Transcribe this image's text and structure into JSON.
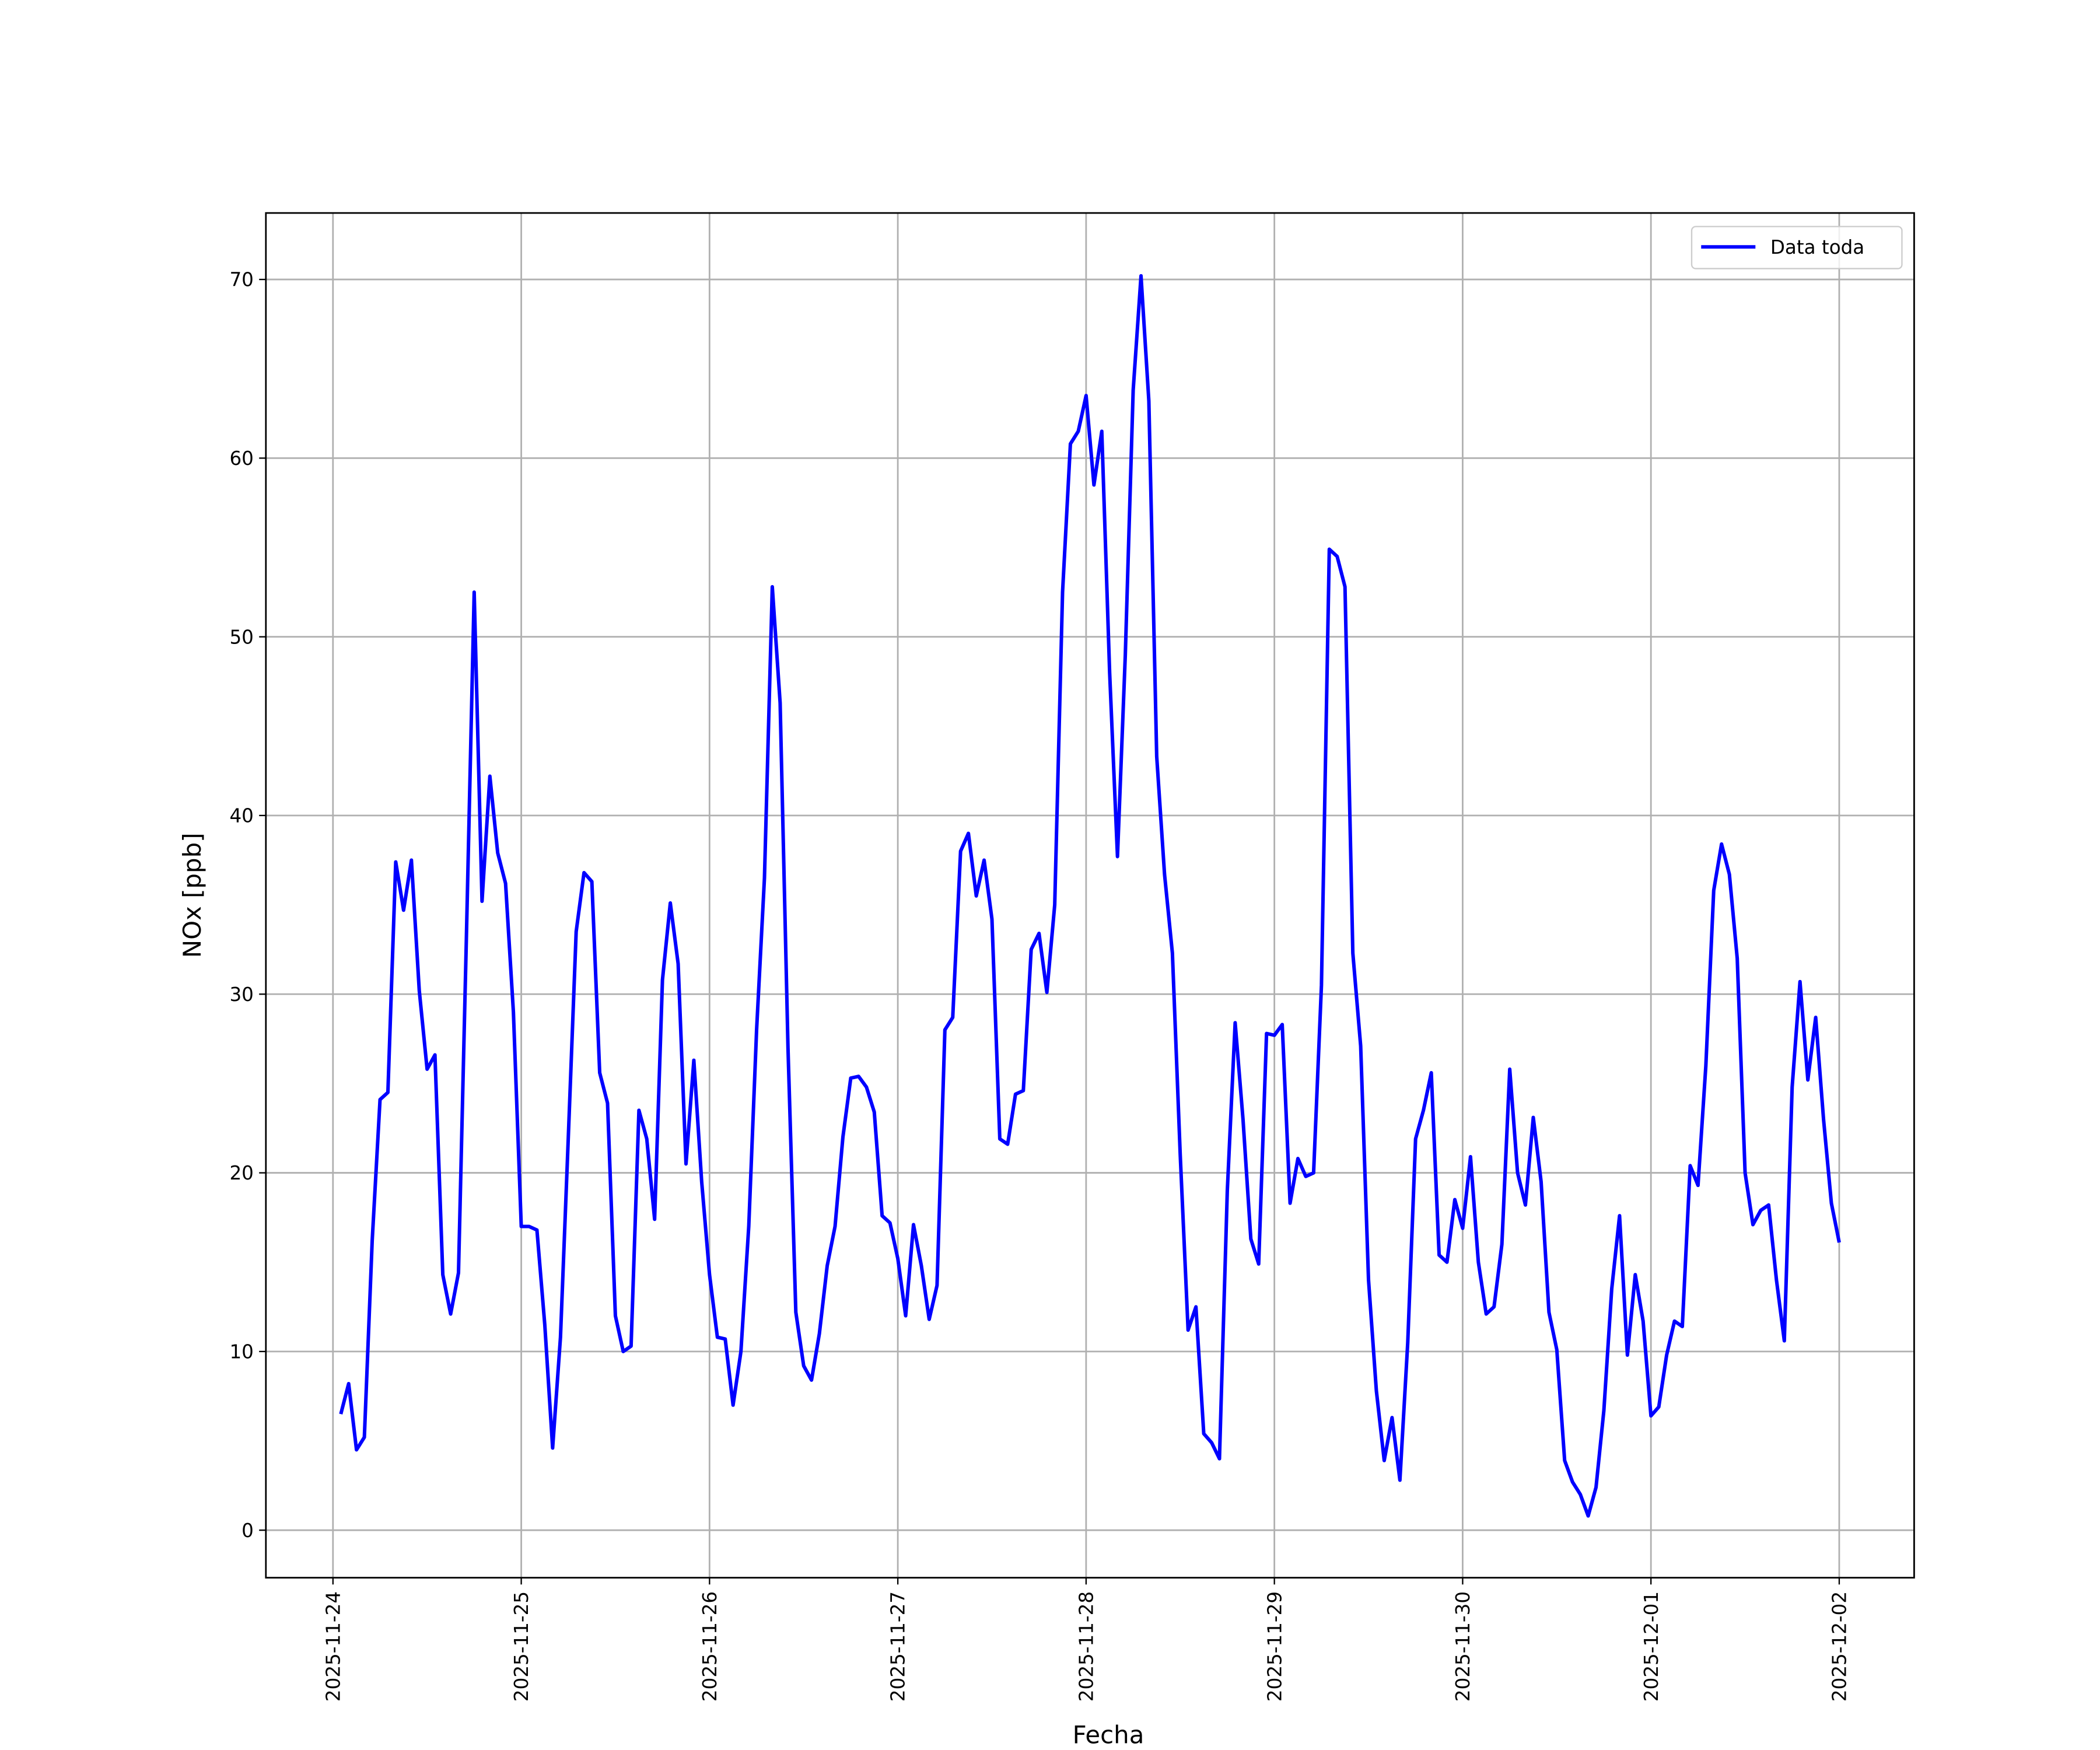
{
  "chart_data": {
    "type": "line",
    "xlabel": "Fecha",
    "ylabel": "NOx [ppb]",
    "x": [
      "2025-11-24 01:00",
      "2025-11-24 02:00",
      "2025-11-24 03:00",
      "2025-11-24 04:00",
      "2025-11-24 05:00",
      "2025-11-24 06:00",
      "2025-11-24 07:00",
      "2025-11-24 08:00",
      "2025-11-24 09:00",
      "2025-11-24 10:00",
      "2025-11-24 11:00",
      "2025-11-24 12:00",
      "2025-11-24 13:00",
      "2025-11-24 14:00",
      "2025-11-24 15:00",
      "2025-11-24 16:00",
      "2025-11-24 17:00",
      "2025-11-24 18:00",
      "2025-11-24 19:00",
      "2025-11-24 20:00",
      "2025-11-24 21:00",
      "2025-11-24 22:00",
      "2025-11-24 23:00",
      "2025-11-25 00:00",
      "2025-11-25 01:00",
      "2025-11-25 02:00",
      "2025-11-25 03:00",
      "2025-11-25 04:00",
      "2025-11-25 05:00",
      "2025-11-25 06:00",
      "2025-11-25 07:00",
      "2025-11-25 08:00",
      "2025-11-25 09:00",
      "2025-11-25 10:00",
      "2025-11-25 11:00",
      "2025-11-25 12:00",
      "2025-11-25 13:00",
      "2025-11-25 14:00",
      "2025-11-25 15:00",
      "2025-11-25 16:00",
      "2025-11-25 17:00",
      "2025-11-25 18:00",
      "2025-11-25 19:00",
      "2025-11-25 20:00",
      "2025-11-25 21:00",
      "2025-11-25 22:00",
      "2025-11-25 23:00",
      "2025-11-26 00:00",
      "2025-11-26 01:00",
      "2025-11-26 02:00",
      "2025-11-26 03:00",
      "2025-11-26 04:00",
      "2025-11-26 05:00",
      "2025-11-26 06:00",
      "2025-11-26 07:00",
      "2025-11-26 08:00",
      "2025-11-26 09:00",
      "2025-11-26 10:00",
      "2025-11-26 11:00",
      "2025-11-26 12:00",
      "2025-11-26 13:00",
      "2025-11-26 14:00",
      "2025-11-26 15:00",
      "2025-11-26 16:00",
      "2025-11-26 17:00",
      "2025-11-26 18:00",
      "2025-11-26 19:00",
      "2025-11-26 20:00",
      "2025-11-26 21:00",
      "2025-11-26 22:00",
      "2025-11-26 23:00",
      "2025-11-27 00:00",
      "2025-11-27 01:00",
      "2025-11-27 02:00",
      "2025-11-27 03:00",
      "2025-11-27 04:00",
      "2025-11-27 05:00",
      "2025-11-27 06:00",
      "2025-11-27 07:00",
      "2025-11-27 08:00",
      "2025-11-27 09:00",
      "2025-11-27 10:00",
      "2025-11-27 11:00",
      "2025-11-27 12:00",
      "2025-11-27 13:00",
      "2025-11-27 14:00",
      "2025-11-27 15:00",
      "2025-11-27 16:00",
      "2025-11-27 17:00",
      "2025-11-27 18:00",
      "2025-11-27 19:00",
      "2025-11-27 20:00",
      "2025-11-27 21:00",
      "2025-11-27 22:00",
      "2025-11-27 23:00",
      "2025-11-28 00:00",
      "2025-11-28 01:00",
      "2025-11-28 02:00",
      "2025-11-28 03:00",
      "2025-11-28 04:00",
      "2025-11-28 05:00",
      "2025-11-28 06:00",
      "2025-11-28 07:00",
      "2025-11-28 08:00",
      "2025-11-28 09:00",
      "2025-11-28 10:00",
      "2025-11-28 11:00",
      "2025-11-28 12:00",
      "2025-11-28 13:00",
      "2025-11-28 14:00",
      "2025-11-28 15:00",
      "2025-11-28 16:00",
      "2025-11-28 17:00",
      "2025-11-28 18:00",
      "2025-11-28 19:00",
      "2025-11-28 20:00",
      "2025-11-28 21:00",
      "2025-11-28 22:00",
      "2025-11-28 23:00",
      "2025-11-29 00:00",
      "2025-11-29 01:00",
      "2025-11-29 02:00",
      "2025-11-29 03:00",
      "2025-11-29 04:00",
      "2025-11-29 05:00",
      "2025-11-29 06:00",
      "2025-11-29 07:00",
      "2025-11-29 08:00",
      "2025-11-29 09:00",
      "2025-11-29 10:00",
      "2025-11-29 11:00",
      "2025-11-29 12:00",
      "2025-11-29 13:00",
      "2025-11-29 14:00",
      "2025-11-29 15:00",
      "2025-11-29 16:00",
      "2025-11-29 17:00",
      "2025-11-29 18:00",
      "2025-11-29 19:00",
      "2025-11-29 20:00",
      "2025-11-29 21:00",
      "2025-11-29 22:00",
      "2025-11-29 23:00",
      "2025-11-30 00:00",
      "2025-11-30 01:00",
      "2025-11-30 02:00",
      "2025-11-30 03:00",
      "2025-11-30 04:00",
      "2025-11-30 05:00",
      "2025-11-30 06:00",
      "2025-11-30 07:00",
      "2025-11-30 08:00",
      "2025-11-30 09:00",
      "2025-11-30 10:00",
      "2025-11-30 11:00",
      "2025-11-30 12:00",
      "2025-11-30 13:00",
      "2025-11-30 14:00",
      "2025-11-30 15:00",
      "2025-11-30 16:00",
      "2025-11-30 17:00",
      "2025-11-30 18:00",
      "2025-11-30 19:00",
      "2025-11-30 20:00",
      "2025-11-30 21:00",
      "2025-11-30 22:00",
      "2025-11-30 23:00",
      "2025-12-01 00:00",
      "2025-12-01 01:00",
      "2025-12-01 02:00",
      "2025-12-01 03:00",
      "2025-12-01 04:00",
      "2025-12-01 05:00",
      "2025-12-01 06:00",
      "2025-12-01 07:00",
      "2025-12-01 08:00",
      "2025-12-01 09:00",
      "2025-12-01 10:00",
      "2025-12-01 11:00",
      "2025-12-01 12:00",
      "2025-12-01 13:00",
      "2025-12-01 14:00",
      "2025-12-01 15:00",
      "2025-12-01 16:00",
      "2025-12-01 17:00",
      "2025-12-01 18:00",
      "2025-12-01 19:00",
      "2025-12-01 20:00",
      "2025-12-01 21:00",
      "2025-12-01 22:00",
      "2025-12-01 23:00",
      "2025-12-02 00:00"
    ],
    "series": [
      {
        "name": "Data toda",
        "color": "#0000ff",
        "values": [
          6.5,
          8.2,
          4.5,
          5.2,
          16.2,
          24.1,
          24.5,
          37.4,
          34.7,
          37.5,
          30.2,
          25.8,
          26.6,
          14.3,
          12.1,
          14.4,
          33,
          52.5,
          35.2,
          42.2,
          37.9,
          36.2,
          29,
          17.0,
          17.0,
          16.8,
          11.5,
          4.6,
          10.8,
          22,
          33.5,
          36.8,
          36.3,
          25.6,
          23.9,
          12.0,
          10.0,
          10.3,
          23.5,
          21.9,
          17.4,
          30.8,
          35.1,
          31.7,
          20.5,
          26.3,
          19.5,
          14.3,
          10.8,
          10.7,
          7.0,
          10.0,
          17,
          28,
          36.5,
          52.8,
          46.3,
          27,
          12.2,
          9.2,
          8.4,
          11.0,
          14.8,
          17.0,
          22,
          25.3,
          25.4,
          24.8,
          23.4,
          17.6,
          17.2,
          15.2,
          12.0,
          17.1,
          14.8,
          11.8,
          13.7,
          28,
          28.7,
          38,
          39,
          35.5,
          37.5,
          34.2,
          21.9,
          21.6,
          24.4,
          24.6,
          32.5,
          33.4,
          30.1,
          35,
          52.5,
          60.8,
          61.5,
          63.5,
          58.5,
          61.5,
          48,
          37.7,
          49,
          63.8,
          70.2,
          63.2,
          43.3,
          36.7,
          32.3,
          21,
          11.2,
          12.5,
          5.4,
          4.9,
          4.0,
          19,
          28.4,
          23,
          16.3,
          14.9,
          27.8,
          27.7,
          28.3,
          18.3,
          20.8,
          19.8,
          20,
          30.5,
          54.9,
          54.5,
          52.8,
          32.3,
          27.1,
          14,
          7.8,
          3.9,
          6.3,
          2.8,
          10.5,
          21.9,
          23.5,
          25.6,
          15.4,
          15.0,
          18.5,
          16.9,
          20.9,
          15.0,
          12.1,
          12.5,
          16,
          25.8,
          20,
          18.2,
          23.1,
          19.5,
          12.2,
          10.1,
          3.9,
          2.7,
          2.0,
          0.8,
          2.4,
          6.7,
          13.5,
          17.6,
          9.8,
          14.3,
          11.7,
          6.4,
          6.9,
          9.8,
          11.7,
          11.4,
          20.4,
          19.3,
          26,
          35.8,
          38.4,
          36.7,
          32,
          20,
          17.1,
          17.9,
          18.2,
          14,
          10.6,
          24.8,
          30.7,
          25.2,
          28.7,
          23,
          18.3,
          16.1
        ]
      }
    ],
    "xlim": [
      "2025-11-23 15:27",
      "2025-12-02 09:33"
    ],
    "xticks": [
      "2025-11-24",
      "2025-11-25",
      "2025-11-26",
      "2025-11-27",
      "2025-11-28",
      "2025-11-29",
      "2025-11-30",
      "2025-12-01",
      "2025-12-02"
    ],
    "ylim": [
      -2.66,
      73.72
    ],
    "yticks": [
      0,
      10,
      20,
      30,
      40,
      50,
      60,
      70
    ],
    "grid": true,
    "legend": "upper right"
  }
}
